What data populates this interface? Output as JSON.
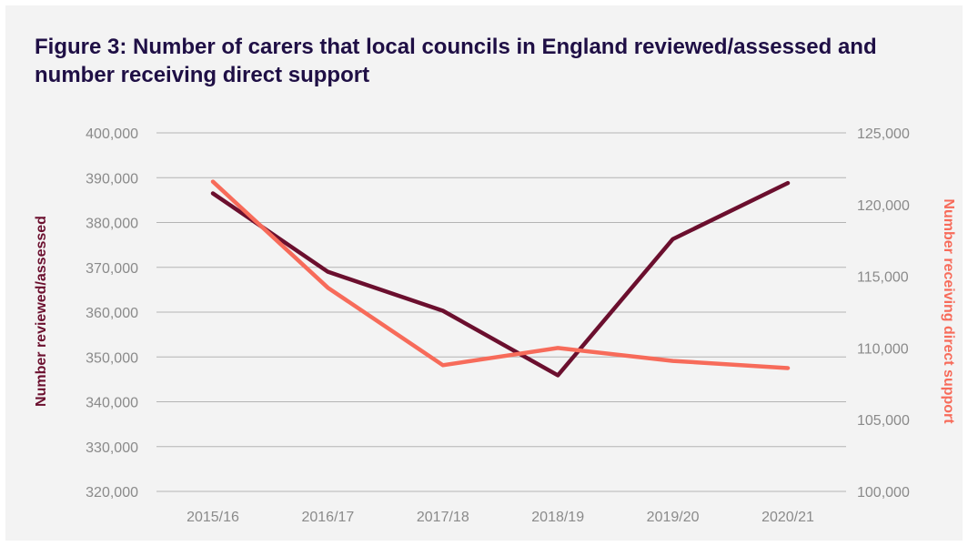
{
  "page": {
    "title": "Figure 3: Number of carers that local councils in England reviewed/assessed and number receiving direct support"
  },
  "chart_data": {
    "type": "line",
    "title": "Figure 3: Number of carers that local councils in England reviewed/assessed and number receiving direct support",
    "categories": [
      "2015/16",
      "2016/17",
      "2017/18",
      "2018/19",
      "2019/20",
      "2020/21"
    ],
    "series": [
      {
        "name": "Number reviewed/assessed",
        "axis": "left",
        "color": "#6b0f2e",
        "values": [
          386500,
          369000,
          360300,
          345900,
          376300,
          388800
        ]
      },
      {
        "name": "Number receiving direct support",
        "axis": "right",
        "color": "#f76b5a",
        "values": [
          121600,
          114200,
          108800,
          110000,
          109100,
          108600
        ]
      }
    ],
    "ylabel_left": "Number reviewed/assessed",
    "ylabel_right": "Number receiving direct support",
    "ylim_left": [
      320000,
      400000
    ],
    "ylim_right": [
      100000,
      125000
    ],
    "yticks_left": [
      "320,000",
      "330,000",
      "340,000",
      "350,000",
      "360,000",
      "370,000",
      "380,000",
      "390,000",
      "400,000"
    ],
    "yticks_right": [
      "100,000",
      "105,000",
      "110,000",
      "115,000",
      "120,000",
      "125,000"
    ],
    "grid": true
  }
}
